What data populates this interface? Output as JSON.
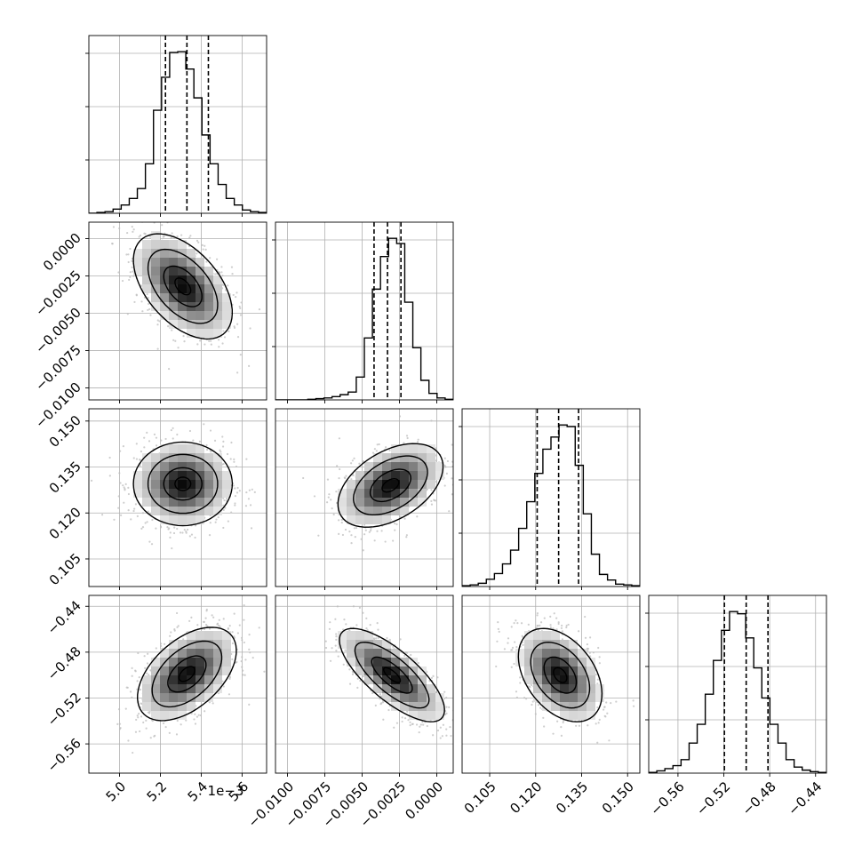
{
  "chart_data": {
    "type": "corner",
    "grid": true,
    "axis_offset_label": "1e−3",
    "parameters": [
      {
        "range": [
          4.85,
          5.72
        ],
        "ticks": [
          5.0,
          5.2,
          5.4,
          5.6
        ],
        "tick_labels": [
          "5.0",
          "5.2",
          "5.4",
          "5.6"
        ],
        "quantiles": [
          5.225,
          5.33,
          5.435
        ],
        "hist_counts": [
          0,
          1,
          2,
          5,
          10,
          18,
          30,
          60,
          125,
          165,
          195,
          196,
          175,
          140,
          95,
          60,
          35,
          18,
          10,
          4,
          2,
          1
        ]
      },
      {
        "range": [
          -0.0108,
          0.0011
        ],
        "ticks": [
          -0.01,
          -0.0075,
          -0.005,
          -0.0025,
          0.0
        ],
        "tick_labels": [
          "−0.0100",
          "−0.0075",
          "−0.0050",
          "−0.0025",
          "0.0000"
        ],
        "quantiles": [
          -0.0042,
          -0.0033,
          -0.0024
        ],
        "hist_counts": [
          0,
          0,
          0,
          0,
          1,
          2,
          3,
          5,
          8,
          12,
          35,
          95,
          170,
          220,
          248,
          240,
          150,
          80,
          30,
          10,
          3,
          1
        ]
      },
      {
        "range": [
          0.096,
          0.154
        ],
        "ticks": [
          0.105,
          0.12,
          0.135,
          0.15
        ],
        "tick_labels": [
          "0.105",
          "0.120",
          "0.135",
          "0.150"
        ],
        "quantiles": [
          0.1205,
          0.1275,
          0.134
        ],
        "hist_counts": [
          1,
          2,
          4,
          9,
          16,
          28,
          45,
          72,
          105,
          140,
          170,
          185,
          200,
          198,
          150,
          90,
          40,
          15,
          8,
          3,
          2,
          1
        ]
      },
      {
        "range": [
          -0.5855,
          -0.4305
        ],
        "ticks": [
          -0.56,
          -0.52,
          -0.48,
          -0.44
        ],
        "tick_labels": [
          "−0.56",
          "−0.52",
          "−0.48",
          "−0.44"
        ],
        "quantiles": [
          -0.5195,
          -0.5005,
          -0.4815
        ],
        "hist_counts": [
          1,
          3,
          6,
          10,
          18,
          40,
          65,
          105,
          150,
          190,
          215,
          212,
          180,
          140,
          100,
          65,
          40,
          18,
          8,
          4,
          2,
          1
        ]
      }
    ],
    "pairs": [
      {
        "x": 0,
        "y": 1,
        "mean": [
          5.31,
          -0.0032
        ],
        "sd": [
          0.11,
          0.0016
        ],
        "corr": -0.5
      },
      {
        "x": 0,
        "y": 2,
        "mean": [
          5.31,
          0.1295
        ],
        "sd": [
          0.11,
          0.0062
        ],
        "corr": 0.0
      },
      {
        "x": 1,
        "y": 2,
        "mean": [
          -0.0031,
          0.129
        ],
        "sd": [
          0.0016,
          0.0062
        ],
        "corr": 0.45
      },
      {
        "x": 0,
        "y": 3,
        "mean": [
          5.33,
          -0.499
        ],
        "sd": [
          0.11,
          0.0185
        ],
        "corr": 0.5
      },
      {
        "x": 1,
        "y": 3,
        "mean": [
          -0.003,
          -0.5
        ],
        "sd": [
          0.0016,
          0.0185
        ],
        "corr": -0.75
      },
      {
        "x": 2,
        "y": 3,
        "mean": [
          0.128,
          -0.5
        ],
        "sd": [
          0.0062,
          0.0185
        ],
        "corr": -0.4
      }
    ]
  }
}
